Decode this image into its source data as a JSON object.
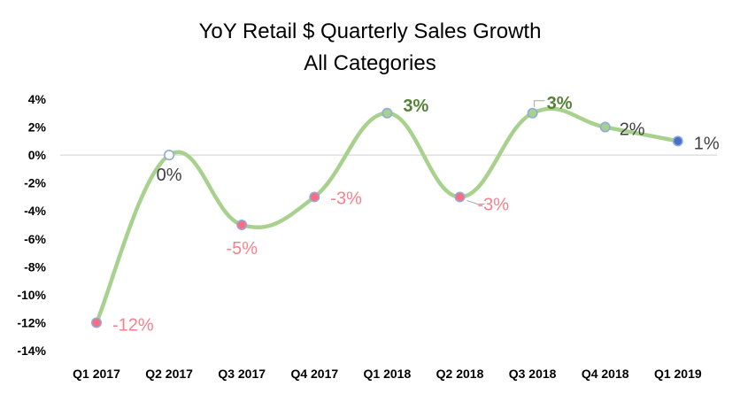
{
  "chart_data": {
    "type": "line",
    "title": "YoY Retail $ Quarterly Sales Growth",
    "subtitle": "All Categories",
    "xlabel": "",
    "ylabel": "",
    "categories": [
      "Q1 2017",
      "Q2 2017",
      "Q3 2017",
      "Q4 2017",
      "Q1 2018",
      "Q2 2018",
      "Q3 2018",
      "Q4 2018",
      "Q1 2019"
    ],
    "series": [
      {
        "values": [
          -12,
          0,
          -5,
          -3,
          3,
          -3,
          3,
          2,
          1
        ],
        "labels": [
          "-12%",
          "0%",
          "-5%",
          "-3%",
          "3%",
          "-3%",
          "3%",
          "2%",
          "1%"
        ]
      }
    ],
    "ylim": [
      -14,
      4
    ],
    "yticks": [
      {
        "value": 4,
        "label": "4%"
      },
      {
        "value": 2,
        "label": "2%"
      },
      {
        "value": 0,
        "label": "0%"
      },
      {
        "value": -2,
        "label": "-2%"
      },
      {
        "value": -4,
        "label": "-4%"
      },
      {
        "value": -6,
        "label": "-6%"
      },
      {
        "value": -8,
        "label": "-8%"
      },
      {
        "value": -10,
        "label": "-10%"
      },
      {
        "value": -12,
        "label": "-12%"
      },
      {
        "value": -14,
        "label": "-14%"
      }
    ],
    "grid": false,
    "smooth": true,
    "colors": {
      "line": "#a9d18e",
      "negative_marker": "#ff6b81",
      "positive_marker": "#a9d18e",
      "zero_marker": "#ffffff",
      "last_marker": "#4472c4",
      "marker_outline": "#8faadc",
      "negative_label": "#f4828c",
      "positive_label": "#548235",
      "neutral_label": "#404040",
      "axis": "#d9d9d9"
    }
  }
}
